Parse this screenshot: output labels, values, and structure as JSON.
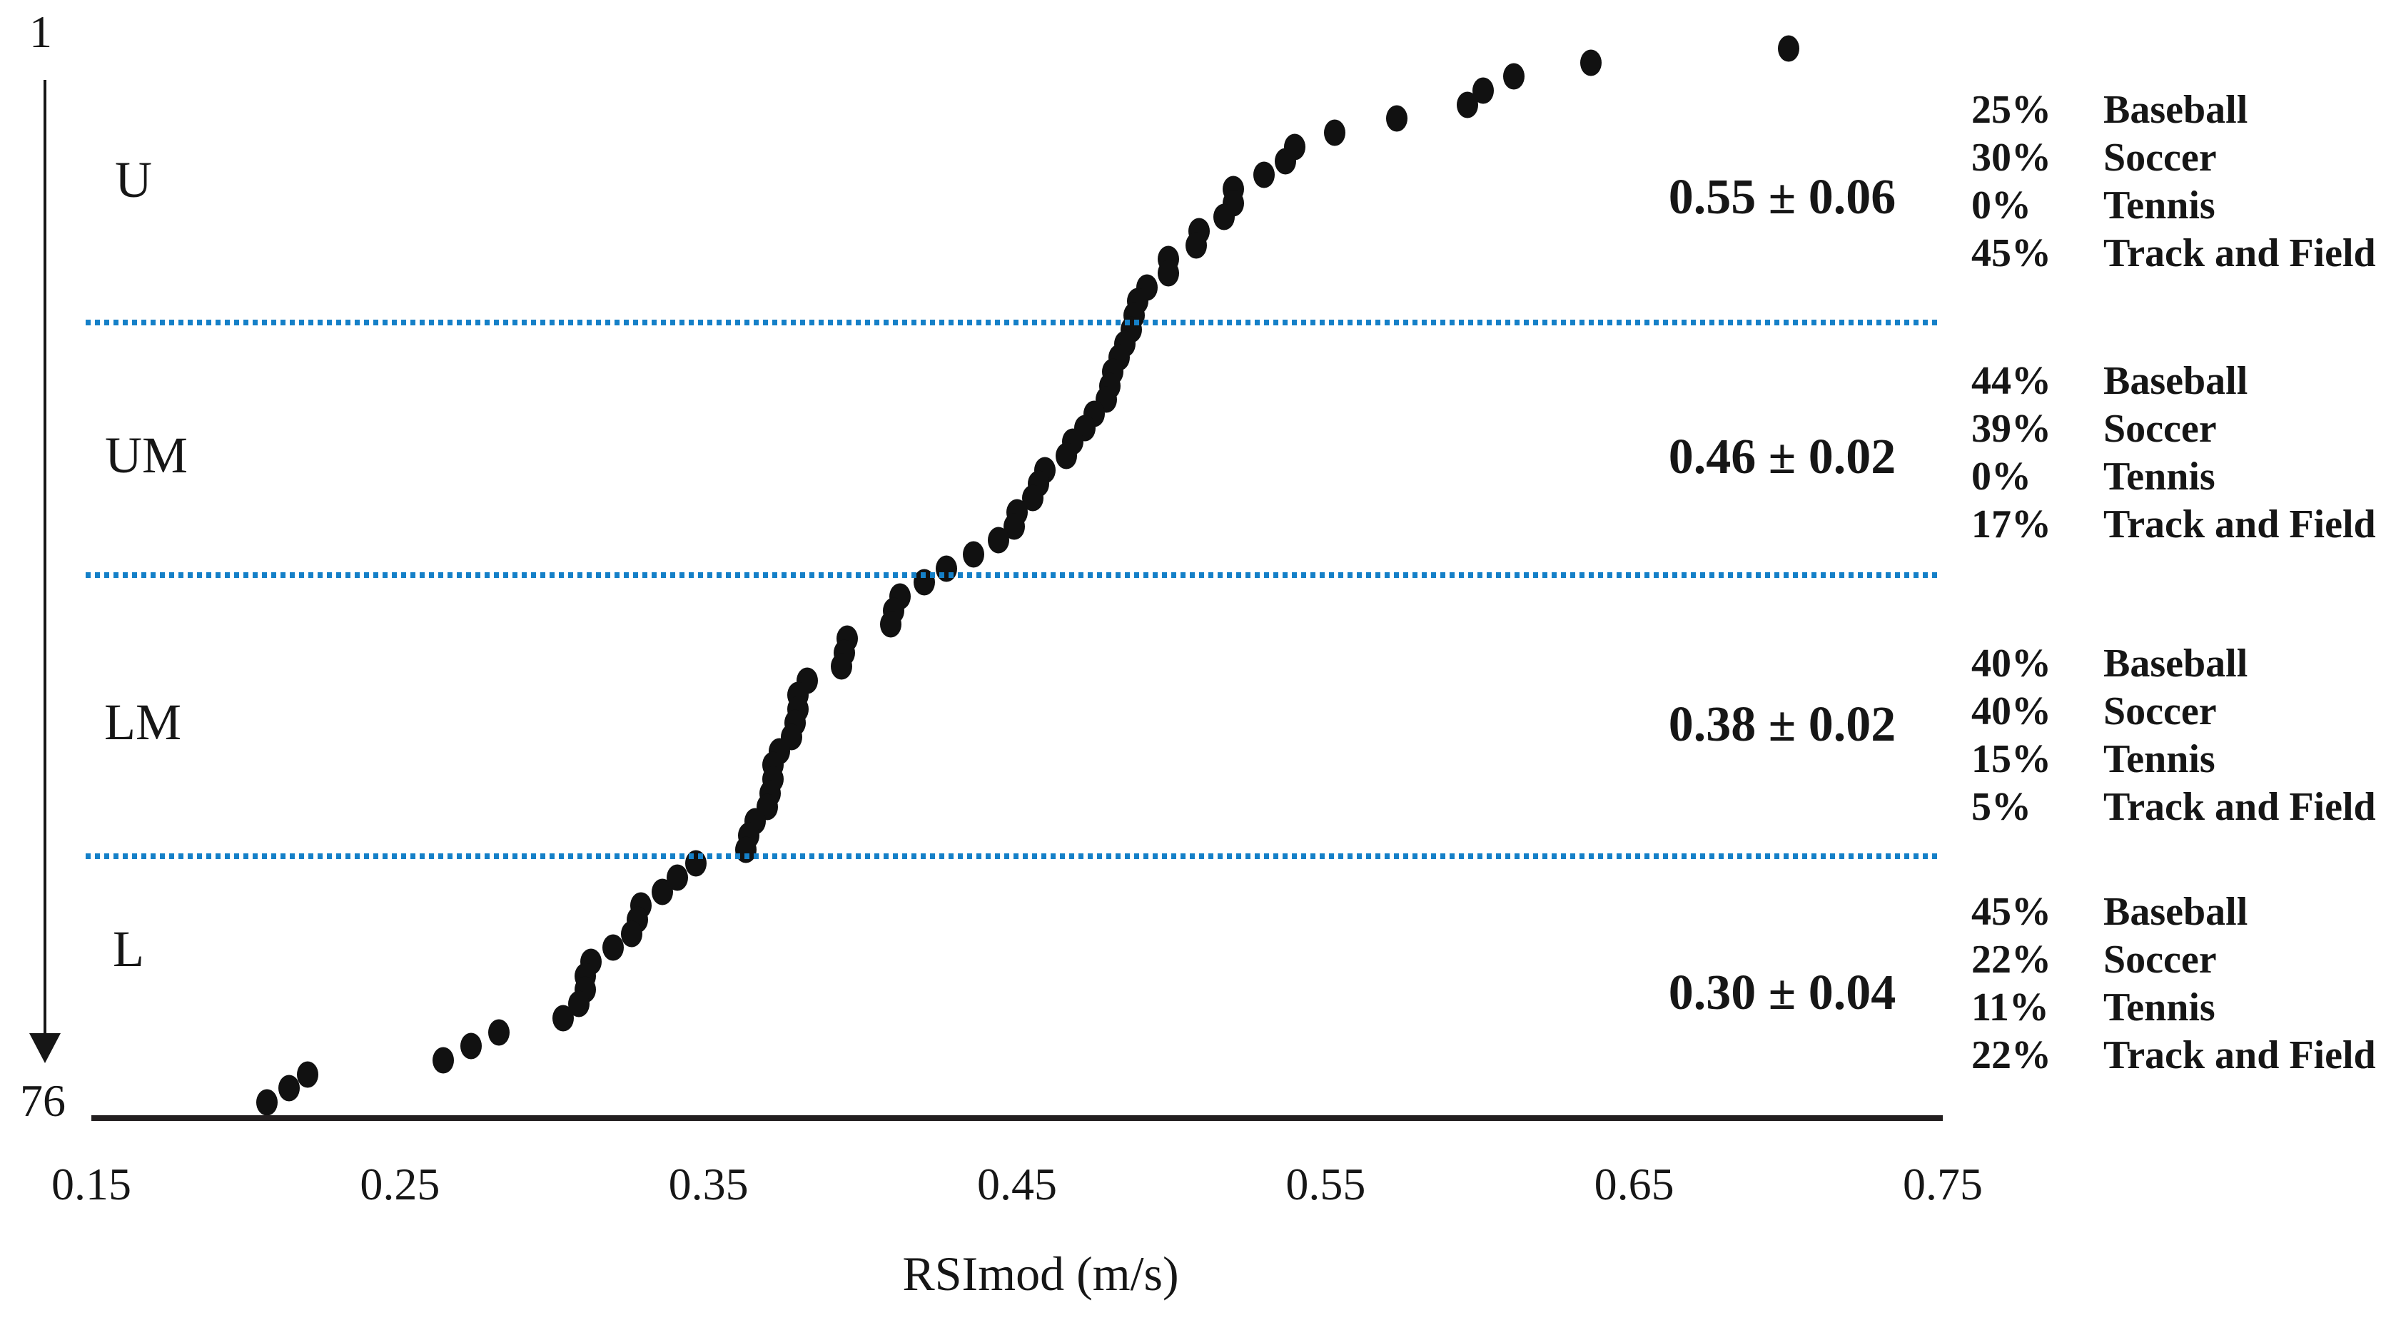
{
  "chart_data": {
    "type": "scatter",
    "xlabel": "RSImod (m/s)",
    "xlim": [
      0.15,
      0.75
    ],
    "x_ticks": [
      "0.15",
      "0.25",
      "0.35",
      "0.45",
      "0.55",
      "0.65",
      "0.75"
    ],
    "rank_axis": {
      "top_label": "1",
      "bottom_label": "76",
      "range": [
        1,
        76
      ]
    },
    "point_color": "#111111",
    "separator_color": "#1580C8",
    "legend_position": "right",
    "grid": false,
    "groups": [
      {
        "label": "U",
        "rank_start": 1,
        "rank_end": 20,
        "mean_label": "0.55 ± 0.06",
        "sports": [
          {
            "pct": "25%",
            "name": "Baseball"
          },
          {
            "pct": "30%",
            "name": "Soccer"
          },
          {
            "pct": "0%",
            "name": "Tennis"
          },
          {
            "pct": "45%",
            "name": "Track and Field"
          }
        ]
      },
      {
        "label": "UM",
        "rank_start": 21,
        "rank_end": 38,
        "mean_label": "0.46 ± 0.02",
        "sports": [
          {
            "pct": "44%",
            "name": "Baseball"
          },
          {
            "pct": "39%",
            "name": "Soccer"
          },
          {
            "pct": "0%",
            "name": "Tennis"
          },
          {
            "pct": "17%",
            "name": "Track and Field"
          }
        ]
      },
      {
        "label": "LM",
        "rank_start": 39,
        "rank_end": 58,
        "mean_label": "0.38 ± 0.02",
        "sports": [
          {
            "pct": "40%",
            "name": "Baseball"
          },
          {
            "pct": "40%",
            "name": "Soccer"
          },
          {
            "pct": "15%",
            "name": "Tennis"
          },
          {
            "pct": "5%",
            "name": "Track and Field"
          }
        ]
      },
      {
        "label": "L",
        "rank_start": 59,
        "rank_end": 76,
        "mean_label": "0.30 ± 0.04",
        "sports": [
          {
            "pct": "45%",
            "name": "Baseball"
          },
          {
            "pct": "22%",
            "name": "Soccer"
          },
          {
            "pct": "11%",
            "name": "Tennis"
          },
          {
            "pct": "22%",
            "name": "Track and Field"
          }
        ]
      }
    ],
    "values": [
      0.7,
      0.636,
      0.611,
      0.601,
      0.596,
      0.573,
      0.553,
      0.54,
      0.537,
      0.53,
      0.52,
      0.52,
      0.517,
      0.509,
      0.508,
      0.499,
      0.499,
      0.492,
      0.489,
      0.488,
      0.487,
      0.485,
      0.483,
      0.481,
      0.48,
      0.479,
      0.475,
      0.472,
      0.468,
      0.466,
      0.459,
      0.457,
      0.455,
      0.45,
      0.449,
      0.444,
      0.436,
      0.427,
      0.42,
      0.412,
      0.41,
      0.409,
      0.395,
      0.394,
      0.393,
      0.382,
      0.379,
      0.379,
      0.378,
      0.377,
      0.373,
      0.371,
      0.371,
      0.37,
      0.369,
      0.365,
      0.363,
      0.362,
      0.346,
      0.34,
      0.335,
      0.328,
      0.327,
      0.325,
      0.319,
      0.312,
      0.31,
      0.31,
      0.308,
      0.303,
      0.282,
      0.273,
      0.264,
      0.22,
      0.214,
      0.207
    ]
  }
}
